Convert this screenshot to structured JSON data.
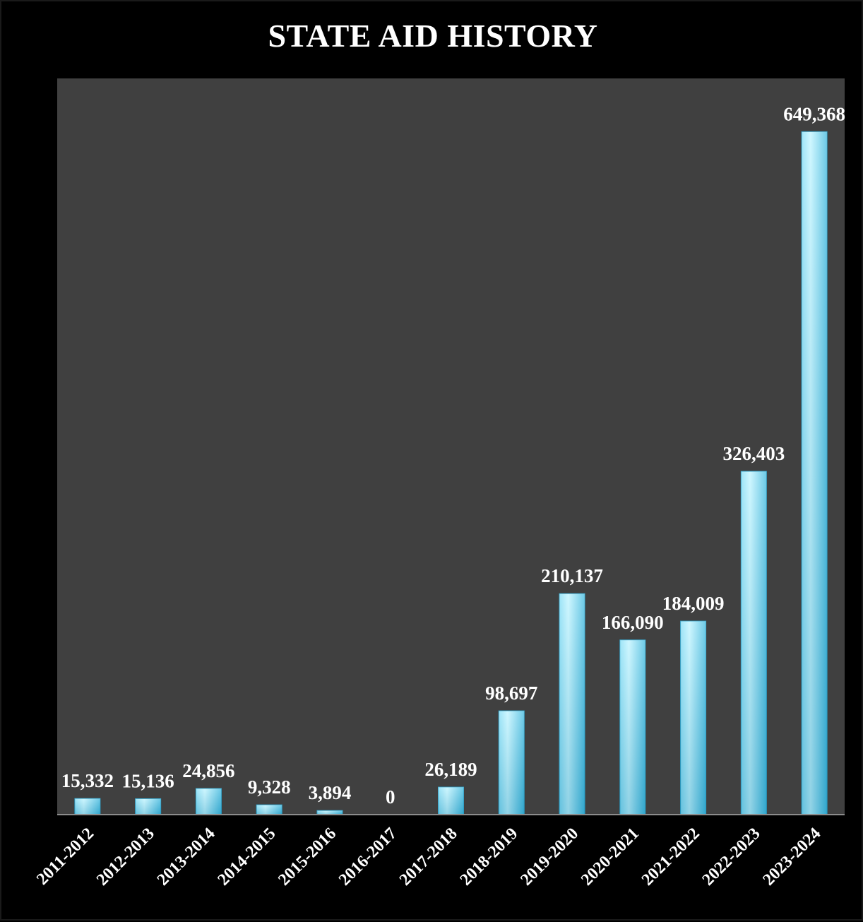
{
  "chart_data": {
    "type": "bar",
    "title": "STATE AID HISTORY",
    "xlabel": "",
    "ylabel": "",
    "categories": [
      "2011-2012",
      "2012-2013",
      "2013-2014",
      "2014-2015",
      "2015-2016",
      "2016-2017",
      "2017-2018",
      "2018-2019",
      "2019-2020",
      "2020-2021",
      "2021-2022",
      "2022-2023",
      "2023-2024"
    ],
    "values": [
      15332,
      15136,
      24856,
      9328,
      3894,
      0,
      26189,
      98697,
      210137,
      166090,
      184009,
      326403,
      649368
    ],
    "data_labels": [
      "15,332",
      "15,136",
      "24,856",
      "9,328",
      "3,894",
      "0",
      "26,189",
      "98,697",
      "210,137",
      "166,090",
      "184,009",
      "326,403",
      "649,368"
    ],
    "ylim": [
      0,
      700000
    ],
    "grid": false,
    "legend": "none",
    "colors": {
      "plot_background": "#404040",
      "page_background": "#000000",
      "bar_light": "#aaf0ff",
      "bar_mid": "#5fd0f0",
      "bar_dark": "#36b4dc",
      "axis_line": "#8c8c8c",
      "text": "#ffffff"
    }
  }
}
